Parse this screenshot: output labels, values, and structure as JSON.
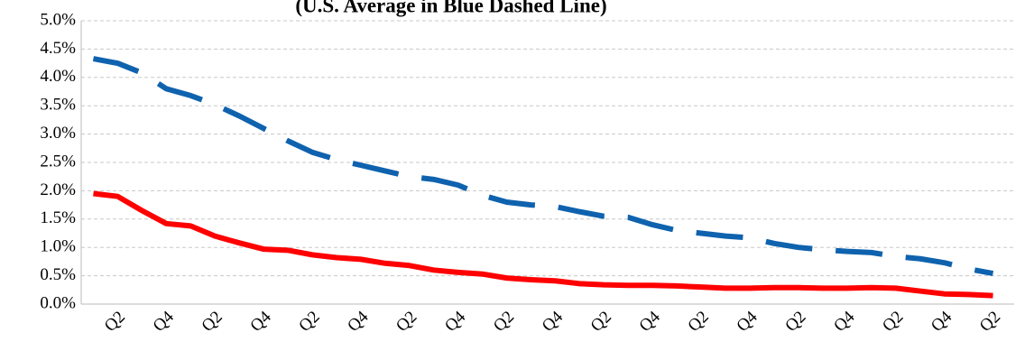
{
  "chart_data": {
    "type": "line",
    "title": "(U.S. Average in Blue Dashed Line)",
    "categories": [
      null,
      "Q2",
      null,
      "Q4",
      null,
      "Q2",
      null,
      "Q4",
      null,
      "Q2",
      null,
      "Q4",
      null,
      "Q2",
      null,
      "Q4",
      null,
      "Q2",
      null,
      "Q4",
      null,
      "Q2",
      null,
      "Q4",
      null,
      "Q2",
      null,
      "Q4",
      null,
      "Q2",
      null,
      "Q4",
      null,
      "Q2",
      null,
      "Q4",
      null,
      "Q2"
    ],
    "series": [
      {
        "color": "#ff0000",
        "dashed": false,
        "values": [
          1.95,
          1.9,
          1.65,
          1.42,
          1.38,
          1.2,
          1.08,
          0.97,
          0.95,
          0.87,
          0.82,
          0.79,
          0.72,
          0.68,
          0.6,
          0.56,
          0.53,
          0.46,
          0.43,
          0.41,
          0.36,
          0.34,
          0.33,
          0.33,
          0.32,
          0.3,
          0.28,
          0.28,
          0.29,
          0.29,
          0.28,
          0.28,
          0.29,
          0.28,
          0.23,
          0.18,
          0.17,
          0.15
        ]
      },
      {
        "color": "#0f62ae",
        "dashed": true,
        "values": [
          4.33,
          4.25,
          4.08,
          3.8,
          3.68,
          3.52,
          3.32,
          3.1,
          2.88,
          2.68,
          2.55,
          2.45,
          2.35,
          2.25,
          2.2,
          2.1,
          1.92,
          1.8,
          1.75,
          1.72,
          1.63,
          1.55,
          1.53,
          1.4,
          1.3,
          1.25,
          1.2,
          1.17,
          1.07,
          1.0,
          0.96,
          0.93,
          0.91,
          0.84,
          0.8,
          0.73,
          0.62,
          0.54
        ]
      }
    ],
    "ylim": [
      0,
      5
    ],
    "yticks": [
      {
        "value": 0,
        "label": "0.0%"
      },
      {
        "value": 0.5,
        "label": "0.5%"
      },
      {
        "value": 1,
        "label": "1.0%"
      },
      {
        "value": 1.5,
        "label": "1.5%"
      },
      {
        "value": 2,
        "label": "2.0%"
      },
      {
        "value": 2.5,
        "label": "2.5%"
      },
      {
        "value": 3,
        "label": "3.0%"
      },
      {
        "value": 3.5,
        "label": "3.5%"
      },
      {
        "value": 4,
        "label": "4.0%"
      },
      {
        "value": 4.5,
        "label": "4.5%"
      },
      {
        "value": 5,
        "label": "5.0%"
      }
    ],
    "grid": true
  }
}
